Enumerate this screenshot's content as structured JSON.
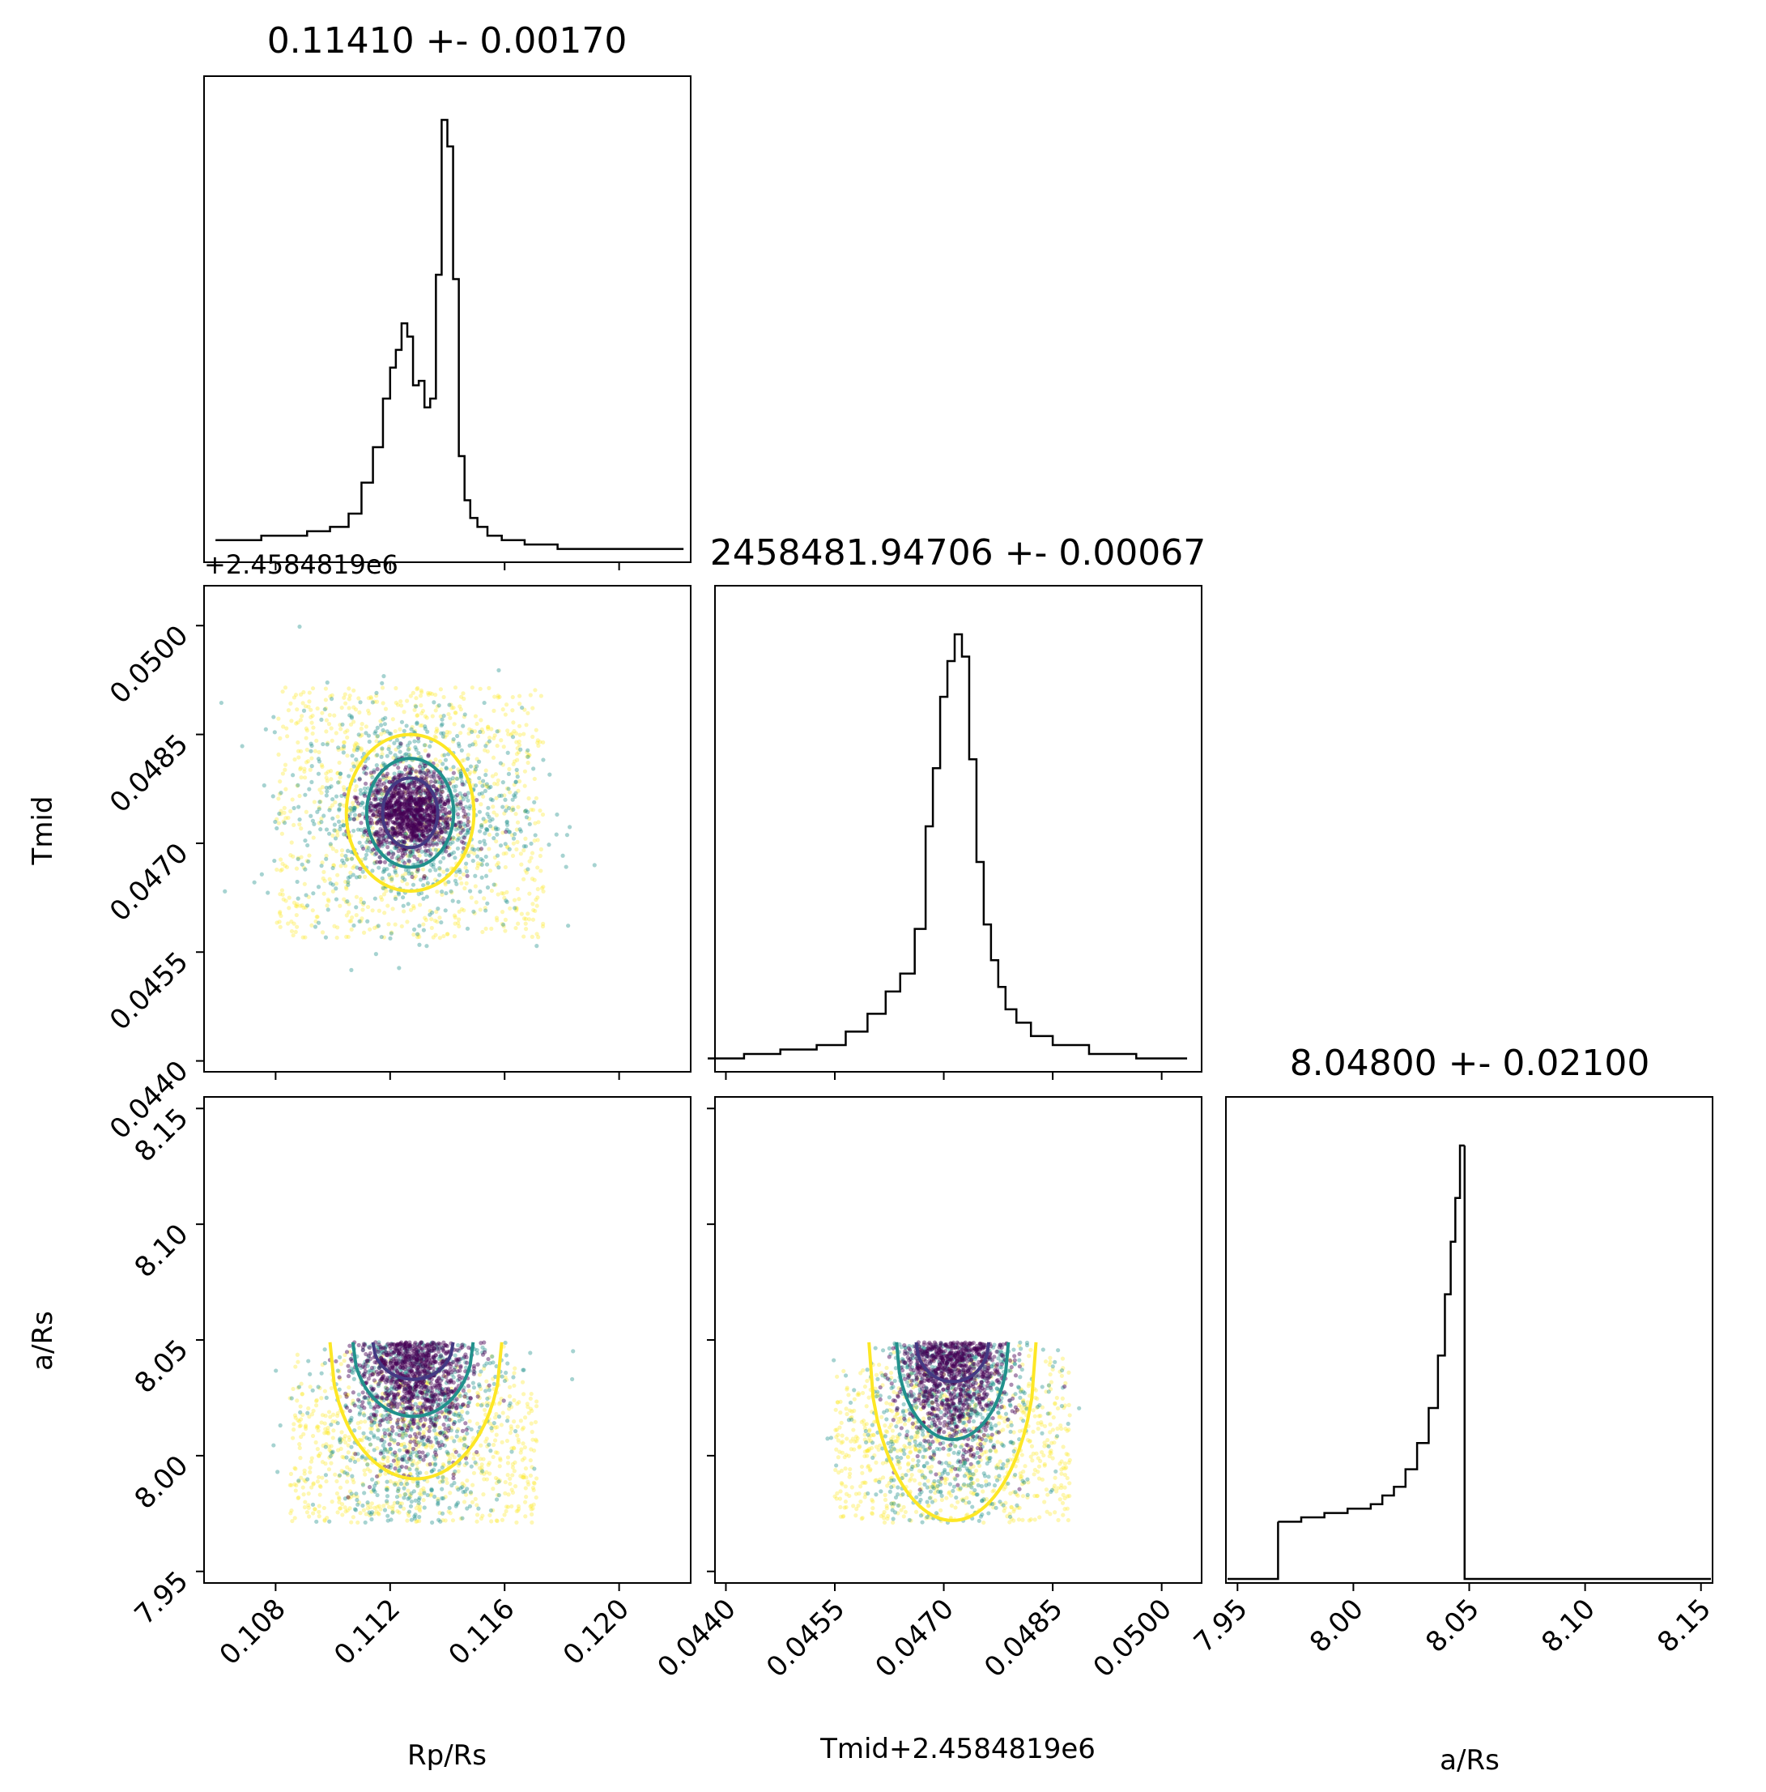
{
  "chart_data": [
    {
      "type": "histogram",
      "panel": "Rp/Rs marginal",
      "title": "0.11410 +- 0.00170",
      "xlim": [
        0.1055,
        0.1225
      ],
      "x": [
        0.1063,
        0.1071,
        0.1079,
        0.1087,
        0.1095,
        0.1103,
        0.1108,
        0.1112,
        0.1116,
        0.1119,
        0.1121,
        0.1123,
        0.1125,
        0.1127,
        0.1129,
        0.1131,
        0.1133,
        0.1135,
        0.1137,
        0.1139,
        0.1141,
        0.1143,
        0.1145,
        0.1147,
        0.1149,
        0.1152,
        0.1156,
        0.1162,
        0.1172,
        0.1185,
        0.12,
        0.1215
      ],
      "values": [
        5,
        5,
        6,
        6,
        7,
        8,
        11,
        18,
        26,
        37,
        44,
        48,
        54,
        51,
        40,
        41,
        35,
        37,
        65,
        100,
        94,
        64,
        24,
        14,
        10,
        8,
        6,
        5,
        4,
        3,
        3,
        3
      ]
    },
    {
      "type": "scatter",
      "panel": "Tmid vs Rp/Rs",
      "xlim": [
        0.1055,
        0.1225
      ],
      "ylim": [
        0.04385,
        0.05055
      ],
      "contour_centers": [
        {
          "x": 0.1127,
          "y": 0.04742
        }
      ],
      "contour_levels": [
        0.39,
        0.86,
        0.99
      ]
    },
    {
      "type": "histogram",
      "panel": "Tmid marginal",
      "title": "2458481.94706 +- 0.00067",
      "xlim": [
        0.04385,
        0.05055
      ],
      "x": [
        0.044,
        0.0445,
        0.045,
        0.0455,
        0.0458,
        0.0461,
        0.0463,
        0.0465,
        0.0467,
        0.0468,
        0.0469,
        0.047,
        0.0471,
        0.0472,
        0.0473,
        0.0474,
        0.0475,
        0.0476,
        0.0477,
        0.0478,
        0.0479,
        0.0481,
        0.0483,
        0.0487,
        0.0493,
        0.05
      ],
      "values": [
        3,
        4,
        5,
        6,
        9,
        13,
        18,
        22,
        32,
        55,
        68,
        84,
        92,
        98,
        93,
        70,
        47,
        33,
        25,
        19,
        14,
        11,
        8,
        6,
        4,
        3
      ]
    },
    {
      "type": "scatter",
      "panel": "a/Rs vs Rp/Rs",
      "xlim": [
        0.1055,
        0.1225
      ],
      "ylim": [
        7.945,
        8.155
      ]
    },
    {
      "type": "scatter",
      "panel": "a/Rs vs Tmid",
      "xlim": [
        0.04385,
        0.05055
      ],
      "ylim": [
        7.945,
        8.155
      ]
    },
    {
      "type": "histogram",
      "panel": "a/Rs marginal",
      "title": "8.04800 +- 0.02100",
      "xlim": [
        7.945,
        8.155
      ],
      "x": [
        7.97,
        7.975,
        7.98,
        7.985,
        7.99,
        7.995,
        8.0,
        8.005,
        8.01,
        8.015,
        8.02,
        8.025,
        8.03,
        8.035,
        8.038,
        8.041,
        8.043,
        8.045,
        8.047
      ],
      "values": [
        14,
        14,
        15,
        15,
        16,
        16,
        17,
        17,
        18,
        20,
        22,
        26,
        32,
        40,
        52,
        66,
        78,
        88,
        100
      ]
    }
  ],
  "axes": {
    "x_ticks_rp": [
      "0.108",
      "0.112",
      "0.116",
      "0.120"
    ],
    "x_ticks_tmid": [
      "0.0440",
      "0.0455",
      "0.0470",
      "0.0485",
      "0.0500"
    ],
    "x_ticks_a": [
      "7.95",
      "8.00",
      "8.05",
      "8.10",
      "8.15"
    ],
    "y_ticks_tmid": [
      "0.0440",
      "0.0455",
      "0.0470",
      "0.0485",
      "0.0500"
    ],
    "y_ticks_a": [
      "7.95",
      "8.00",
      "8.05",
      "8.10",
      "8.15"
    ],
    "y_offset": "+2.4584819e6",
    "xlabel_rp": "Rp/Rs",
    "xlabel_tmid": "Tmid",
    "xlabel_tmid_offset": "+2.4584819e6",
    "xlabel_a": "a/Rs",
    "ylabel_tmid": "Tmid",
    "ylabel_a": "a/Rs"
  },
  "colors": {
    "level_inner": "#443983",
    "level_mid": "#21918c",
    "level_outer": "#fde725",
    "points_dense": "#440154",
    "points_mid": "#21918c",
    "points_sparse": "#fde725"
  }
}
